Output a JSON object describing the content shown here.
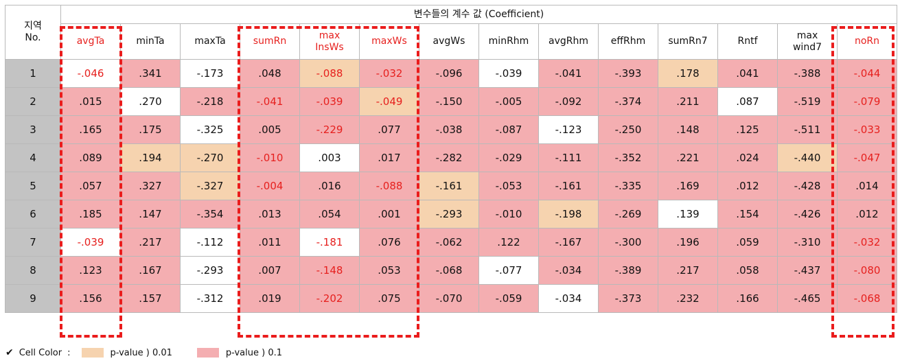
{
  "table": {
    "region_header": "지역\nNo.",
    "group_header": "변수들의 계수 값 (Coefficient)",
    "columns": [
      "avgTa",
      "minTa",
      "maxTa",
      "sumRn",
      "max\nInsWs",
      "maxWs",
      "avgWs",
      "minRhm",
      "avgRhm",
      "effRhm",
      "sumRn7",
      "Rntf",
      "max\nwind7",
      "noRn"
    ],
    "highlighted_columns": [
      "avgTa",
      "sumRn",
      "max\nInsWs",
      "maxWs",
      "noRn"
    ],
    "rows": [
      {
        "no": "1",
        "values": [
          "-.046",
          ".341",
          "-.173",
          ".048",
          "-.088",
          "-.032",
          "-.096",
          "-.039",
          "-.041",
          "-.393",
          ".178",
          ".041",
          "-.388",
          "-.044"
        ]
      },
      {
        "no": "2",
        "values": [
          ".015",
          ".270",
          "-.218",
          "-.041",
          "-.039",
          "-.049",
          "-.150",
          "-.005",
          "-.092",
          "-.374",
          ".211",
          ".087",
          "-.519",
          "-.079"
        ]
      },
      {
        "no": "3",
        "values": [
          ".165",
          ".175",
          "-.325",
          ".005",
          "-.229",
          ".077",
          "-.038",
          "-.087",
          "-.123",
          "-.250",
          ".148",
          ".125",
          "-.511",
          "-.033"
        ]
      },
      {
        "no": "4",
        "values": [
          ".089",
          ".194",
          "-.270",
          "-.010",
          ".003",
          ".017",
          "-.282",
          "-.029",
          "-.111",
          "-.352",
          ".221",
          ".024",
          "-.440",
          "-.047"
        ]
      },
      {
        "no": "5",
        "values": [
          ".057",
          ".327",
          "-.327",
          "-.004",
          ".016",
          "-.088",
          "-.161",
          "-.053",
          "-.161",
          "-.335",
          ".169",
          ".012",
          "-.428",
          ".014"
        ]
      },
      {
        "no": "6",
        "values": [
          ".185",
          ".147",
          "-.354",
          ".013",
          ".054",
          ".001",
          "-.293",
          "-.010",
          "-.198",
          "-.269",
          ".139",
          ".154",
          "-.426",
          ".012"
        ]
      },
      {
        "no": "7",
        "values": [
          "-.039",
          ".217",
          "-.112",
          ".011",
          "-.181",
          ".076",
          "-.062",
          ".122",
          "-.167",
          "-.300",
          ".196",
          ".059",
          "-.310",
          "-.032"
        ]
      },
      {
        "no": "8",
        "values": [
          ".123",
          ".167",
          "-.293",
          ".007",
          "-.148",
          ".053",
          "-.068",
          "-.077",
          "-.034",
          "-.389",
          ".217",
          ".058",
          "-.437",
          "-.080"
        ]
      },
      {
        "no": "9",
        "values": [
          ".156",
          ".157",
          "-.312",
          ".019",
          "-.202",
          ".075",
          "-.070",
          "-.059",
          "-.034",
          "-.373",
          ".232",
          ".166",
          "-.465",
          "-.068"
        ]
      }
    ],
    "cell_colors": [
      [
        "w",
        "p1",
        "w",
        "p1",
        "p01",
        "p1",
        "p1",
        "w",
        "p1",
        "p1",
        "p01",
        "p1",
        "p1",
        "p1"
      ],
      [
        "p1",
        "w",
        "p1",
        "p1",
        "p1",
        "p01",
        "p1",
        "p1",
        "p1",
        "p1",
        "p1",
        "w",
        "p1",
        "p1"
      ],
      [
        "p1",
        "p1",
        "w",
        "p1",
        "p1",
        "p1",
        "p1",
        "p1",
        "w",
        "p1",
        "p1",
        "p1",
        "p1",
        "p1"
      ],
      [
        "p1",
        "p01",
        "p01",
        "p1",
        "w",
        "p1",
        "p1",
        "p1",
        "p1",
        "p1",
        "p1",
        "p1",
        "p01",
        "p1"
      ],
      [
        "p1",
        "p1",
        "p01",
        "p1",
        "p1",
        "p1",
        "p01",
        "p1",
        "p1",
        "p1",
        "p1",
        "p1",
        "p1",
        "p1"
      ],
      [
        "p1",
        "p1",
        "p1",
        "p1",
        "p1",
        "p1",
        "p01",
        "p1",
        "p01",
        "p1",
        "w",
        "p1",
        "p1",
        "p1"
      ],
      [
        "w",
        "p1",
        "w",
        "p1",
        "w",
        "p1",
        "p1",
        "p1",
        "p1",
        "p1",
        "p1",
        "p1",
        "p1",
        "p1"
      ],
      [
        "p1",
        "p1",
        "w",
        "p1",
        "p1",
        "p1",
        "p1",
        "w",
        "p1",
        "p1",
        "p1",
        "p1",
        "p1",
        "p1"
      ],
      [
        "p1",
        "p1",
        "w",
        "p1",
        "p1",
        "p1",
        "p1",
        "p1",
        "w",
        "p1",
        "p1",
        "p1",
        "p1",
        "p1"
      ]
    ],
    "red_text": [
      [
        true,
        false,
        false,
        false,
        true,
        true,
        false,
        false,
        false,
        false,
        false,
        false,
        false,
        true
      ],
      [
        false,
        false,
        false,
        true,
        true,
        true,
        false,
        false,
        false,
        false,
        false,
        false,
        false,
        true
      ],
      [
        false,
        false,
        false,
        false,
        true,
        false,
        false,
        false,
        false,
        false,
        false,
        false,
        false,
        true
      ],
      [
        false,
        false,
        false,
        true,
        false,
        false,
        false,
        false,
        false,
        false,
        false,
        false,
        false,
        true
      ],
      [
        false,
        false,
        false,
        true,
        false,
        true,
        false,
        false,
        false,
        false,
        false,
        false,
        false,
        false
      ],
      [
        false,
        false,
        false,
        false,
        false,
        false,
        false,
        false,
        false,
        false,
        false,
        false,
        false,
        false
      ],
      [
        true,
        false,
        false,
        false,
        true,
        false,
        false,
        false,
        false,
        false,
        false,
        false,
        false,
        true
      ],
      [
        false,
        false,
        false,
        false,
        true,
        false,
        false,
        false,
        false,
        false,
        false,
        false,
        false,
        true
      ],
      [
        false,
        false,
        false,
        false,
        true,
        false,
        false,
        false,
        false,
        false,
        false,
        false,
        false,
        true
      ]
    ]
  },
  "legend": {
    "check_icon": "✔",
    "prefix": "Cell Color",
    "separator": ":",
    "items": [
      {
        "label": "p-value ) 0.01",
        "color": "#f6d3af"
      },
      {
        "label": "p-value ) 0.1",
        "color": "#f4aeb1"
      }
    ]
  },
  "colors": {
    "highlight_text": "#e6201e",
    "frame": "#ea1c1c",
    "pvalue_001": "#f6d3af",
    "pvalue_01": "#f4aeb1",
    "row_no_bg": "#c3c3c3"
  }
}
